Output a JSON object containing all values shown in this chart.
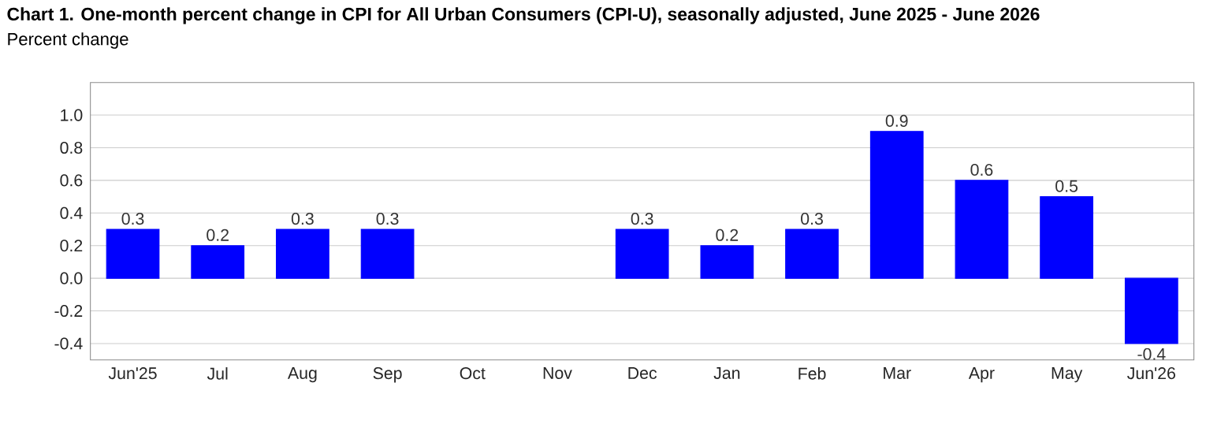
{
  "chart_data": {
    "type": "bar",
    "title": "Chart 1. One-month percent change in CPI for All Urban Consumers (CPI-U), seasonally adjusted, June 2025 - June 2026",
    "subtitle": "Percent change",
    "categories": [
      "Jun'25",
      "Jul",
      "Aug",
      "Sep",
      "Oct",
      "Nov",
      "Dec",
      "Jan",
      "Feb",
      "Mar",
      "Apr",
      "May",
      "Jun'26"
    ],
    "values": [
      0.3,
      0.2,
      0.3,
      0.3,
      null,
      null,
      0.3,
      0.2,
      0.3,
      0.9,
      0.6,
      0.5,
      -0.4
    ],
    "color": "#0000ff",
    "ylim": [
      -0.5,
      1.2
    ],
    "yticks": [
      -0.4,
      -0.2,
      {
        "value": 0.0,
        "label": "0.0"
      },
      0.2,
      0.4,
      0.6,
      0.8,
      {
        "value": 1.0,
        "label": "1.0"
      }
    ],
    "grid": "y",
    "data_labels": true
  }
}
